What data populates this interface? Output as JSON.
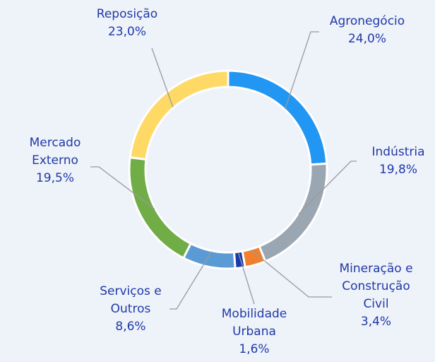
{
  "chart_data": {
    "type": "donut",
    "categories": [
      "Agronegócio",
      "Indústria",
      "Mineração e Construção Civil",
      "Mobilidade Urbana",
      "Serviços e Outros",
      "Mercado Externo",
      "Reposição"
    ],
    "values": [
      24.0,
      19.8,
      3.4,
      1.6,
      8.6,
      19.5,
      23.0
    ],
    "value_labels": [
      "24,0%",
      "19,8%",
      "3,4%",
      "1,6%",
      "8,6%",
      "19,5%",
      "23,0%"
    ],
    "colors": [
      "#2196f3",
      "#9aa6b2",
      "#f07f2e",
      "#1a3aa8",
      "#5b9bd5",
      "#70ad47",
      "#ffd966"
    ]
  }
}
